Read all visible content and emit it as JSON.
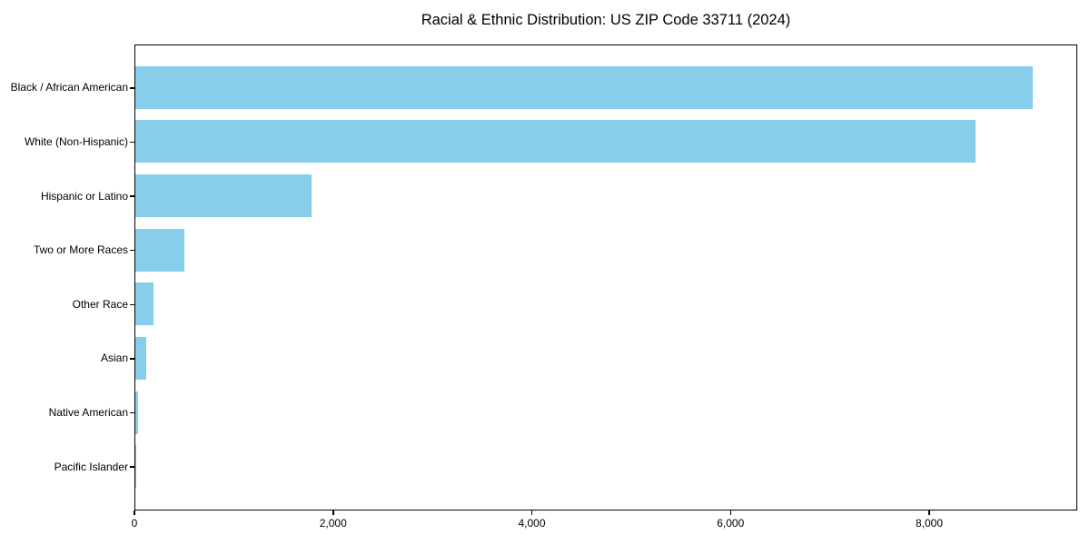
{
  "figure": {
    "background_color": "#ffffff",
    "text_color": "#000000",
    "axes_color": "#000000"
  },
  "chart_data": {
    "type": "bar",
    "orientation": "horizontal",
    "title": "Racial & Ethnic Distribution: US ZIP Code 33711 (2024)",
    "categories": [
      "Black / African American",
      "White (Non-Hispanic)",
      "Hispanic or Latino",
      "Two or More Races",
      "Other Race",
      "Asian",
      "Native American",
      "Pacific Islander"
    ],
    "values": [
      9030,
      8460,
      1770,
      490,
      180,
      110,
      25,
      5
    ],
    "xlabel": "",
    "ylabel": "",
    "xlim": [
      0,
      9490
    ],
    "xticks": [
      0,
      2000,
      4000,
      6000,
      8000
    ],
    "xtick_labels": [
      "0",
      "2,000",
      "4,000",
      "6,000",
      "8,000"
    ],
    "bar_color": "#87CEEB",
    "grid": false,
    "legend": null
  }
}
